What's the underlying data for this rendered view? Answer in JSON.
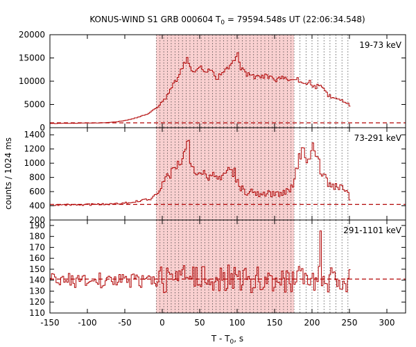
{
  "chart_data": {
    "type": "line",
    "title": {
      "prefix": "KONUS-WIND S1 GRB 000604 T",
      "sub": "0",
      "suffix": " = 79594.548s UT (22:06:34.548)"
    },
    "xlabel": {
      "main": "T - T",
      "sub": "0",
      "suffix": ", s"
    },
    "ylabel": "counts / 1024 ms",
    "xlim": [
      -150,
      325
    ],
    "x_ticks": [
      -150,
      -100,
      -50,
      0,
      50,
      100,
      150,
      200,
      250,
      300
    ],
    "shaded_interval": [
      -8,
      176
    ],
    "dotted_time_markers": [
      -8,
      -3,
      2,
      7,
      12,
      17,
      22,
      27,
      32,
      37,
      42,
      47,
      52,
      57,
      62,
      67,
      72,
      77,
      82,
      87,
      92,
      97,
      102,
      107,
      112,
      117,
      122,
      127,
      132,
      137,
      142,
      147,
      152,
      157,
      162,
      167,
      172,
      176,
      184,
      192,
      200,
      208,
      216,
      224,
      232,
      240,
      248
    ],
    "color": "#b00000",
    "shade_color": "#f9d0d0",
    "panels": [
      {
        "label": "19-73 keV",
        "ylim": [
          0,
          20000
        ],
        "y_ticks": [
          0,
          5000,
          10000,
          15000,
          20000
        ],
        "background": 1050,
        "profile": [
          [
            -150,
            900
          ],
          [
            -120,
            950
          ],
          [
            -80,
            1050
          ],
          [
            -60,
            1300
          ],
          [
            -40,
            1900
          ],
          [
            -20,
            3000
          ],
          [
            -8,
            4300
          ],
          [
            0,
            5600
          ],
          [
            8,
            7500
          ],
          [
            15,
            9500
          ],
          [
            22,
            11500
          ],
          [
            30,
            14000
          ],
          [
            33,
            15000
          ],
          [
            37,
            13000
          ],
          [
            42,
            11500
          ],
          [
            50,
            13000
          ],
          [
            58,
            11800
          ],
          [
            66,
            12500
          ],
          [
            72,
            10500
          ],
          [
            80,
            12000
          ],
          [
            88,
            13000
          ],
          [
            95,
            14300
          ],
          [
            100,
            15600
          ],
          [
            104,
            13000
          ],
          [
            110,
            11500
          ],
          [
            120,
            11000
          ],
          [
            130,
            10800
          ],
          [
            140,
            11200
          ],
          [
            150,
            10300
          ],
          [
            160,
            10600
          ],
          [
            170,
            10000
          ],
          [
            178,
            10500
          ],
          [
            188,
            9500
          ],
          [
            196,
            9800
          ],
          [
            203,
            8700
          ],
          [
            210,
            9200
          ],
          [
            220,
            7000
          ],
          [
            230,
            6200
          ],
          [
            240,
            5800
          ],
          [
            250,
            4800
          ]
        ]
      },
      {
        "label": "73-291 keV",
        "ylim": [
          200,
          1500
        ],
        "y_ticks": [
          200,
          400,
          600,
          800,
          1000,
          1200,
          1400
        ],
        "background": 420,
        "profile": [
          [
            -150,
            410
          ],
          [
            -100,
            415
          ],
          [
            -60,
            430
          ],
          [
            -30,
            470
          ],
          [
            -15,
            500
          ],
          [
            -5,
            600
          ],
          [
            0,
            800
          ],
          [
            5,
            780
          ],
          [
            10,
            860
          ],
          [
            15,
            900
          ],
          [
            20,
            950
          ],
          [
            25,
            1050
          ],
          [
            30,
            1250
          ],
          [
            33,
            1310
          ],
          [
            37,
            1050
          ],
          [
            42,
            870
          ],
          [
            50,
            880
          ],
          [
            60,
            820
          ],
          [
            70,
            820
          ],
          [
            80,
            770
          ],
          [
            90,
            900
          ],
          [
            95,
            880
          ],
          [
            100,
            740
          ],
          [
            105,
            650
          ],
          [
            110,
            580
          ],
          [
            120,
            620
          ],
          [
            130,
            560
          ],
          [
            140,
            560
          ],
          [
            150,
            580
          ],
          [
            160,
            560
          ],
          [
            170,
            650
          ],
          [
            176,
            780
          ],
          [
            182,
            1050
          ],
          [
            186,
            1150
          ],
          [
            190,
            1150
          ],
          [
            193,
            1000
          ],
          [
            197,
            1150
          ],
          [
            200,
            1300
          ],
          [
            203,
            1150
          ],
          [
            207,
            1000
          ],
          [
            212,
            900
          ],
          [
            218,
            760
          ],
          [
            225,
            650
          ],
          [
            232,
            680
          ],
          [
            238,
            640
          ],
          [
            244,
            610
          ],
          [
            250,
            520
          ]
        ]
      },
      {
        "label": "291-1101 keV",
        "ylim": [
          110,
          195
        ],
        "y_ticks": [
          110,
          120,
          130,
          140,
          150,
          160,
          170,
          180,
          190
        ],
        "background": 141,
        "spike": [
          210,
          185
        ],
        "profile": [
          [
            -150,
            140
          ],
          [
            0,
            140
          ],
          [
            50,
            143
          ],
          [
            100,
            141
          ],
          [
            150,
            140
          ],
          [
            200,
            141
          ],
          [
            250,
            138
          ]
        ]
      }
    ]
  }
}
